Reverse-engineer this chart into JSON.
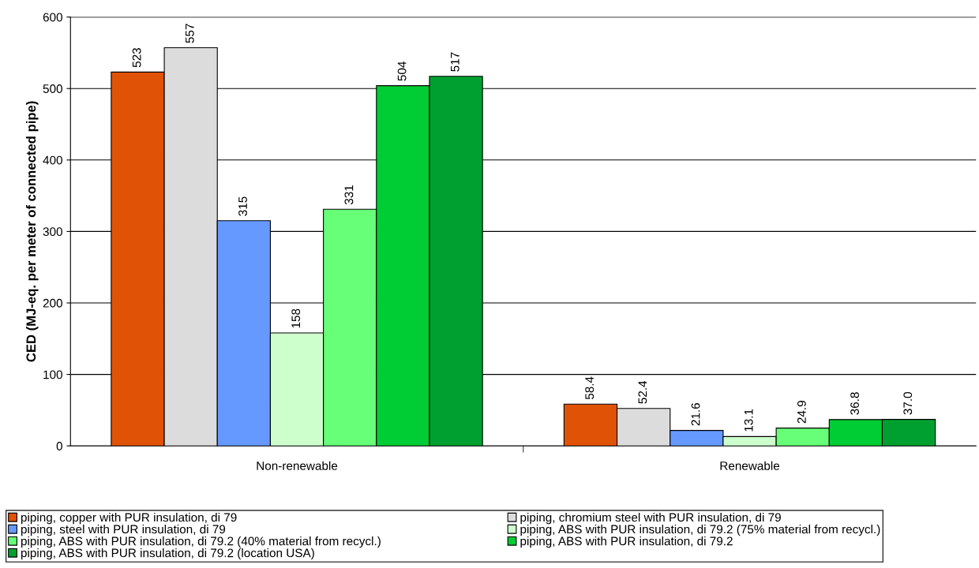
{
  "chart_data": {
    "type": "bar",
    "ylabel": "CED (MJ-eq. per meter of connected pipe)",
    "categories": [
      "Non-renewable",
      "Renewable"
    ],
    "series": [
      {
        "name": "piping, copper with PUR insulation, di 79",
        "color": "#e05206",
        "values": [
          523,
          58.4
        ],
        "value_labels": [
          "523",
          "58.4"
        ]
      },
      {
        "name": "piping, chromium steel with PUR insulation, di 79",
        "color": "#dcdcdc",
        "values": [
          557,
          52.4
        ],
        "value_labels": [
          "557",
          "52.4"
        ]
      },
      {
        "name": "piping, steel with PUR insulation, di 79",
        "color": "#6699ff",
        "values": [
          315,
          21.6
        ],
        "value_labels": [
          "315",
          "21.6"
        ]
      },
      {
        "name": "piping, ABS with PUR insulation, di 79.2 (75% material from recycl.)",
        "color": "#ccffcc",
        "values": [
          158,
          13.1
        ],
        "value_labels": [
          "158",
          "13.1"
        ]
      },
      {
        "name": "piping, ABS with PUR insulation, di 79.2 (40% material from recycl.)",
        "color": "#66ff77",
        "values": [
          331,
          24.9
        ],
        "value_labels": [
          "331",
          "24.9"
        ]
      },
      {
        "name": "piping, ABS with PUR insulation, di 79.2",
        "color": "#00cc33",
        "values": [
          504,
          36.8
        ],
        "value_labels": [
          "504",
          "36.8"
        ]
      },
      {
        "name": "piping, ABS with PUR insulation, di 79.2 (location USA)",
        "color": "#00a030",
        "values": [
          517,
          37.0
        ],
        "value_labels": [
          "517",
          "37.0"
        ]
      }
    ],
    "ylim": [
      0,
      600
    ],
    "yticks": [
      0,
      100,
      200,
      300,
      400,
      500,
      600
    ],
    "grid": "y",
    "legend": "bottom"
  }
}
